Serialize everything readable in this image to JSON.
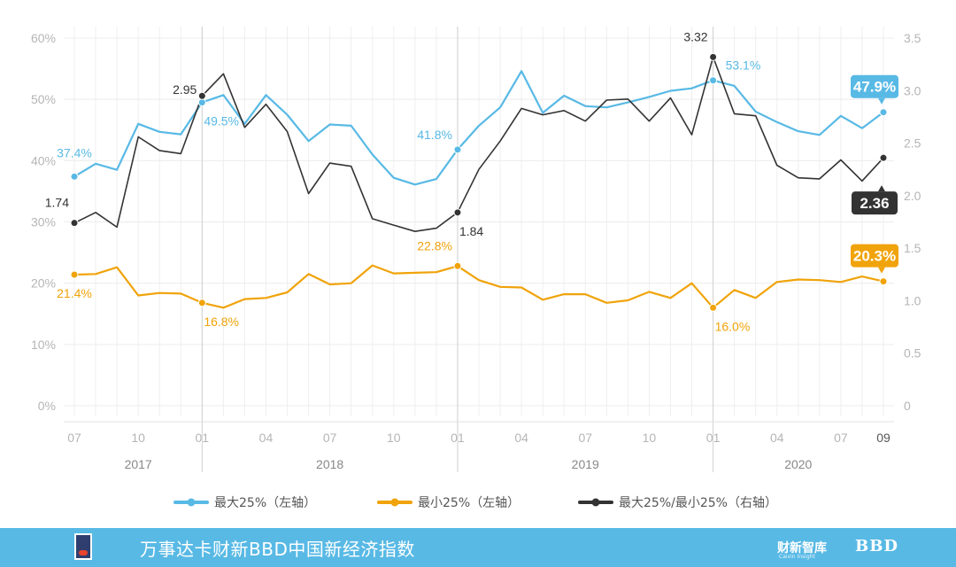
{
  "chart_data": {
    "type": "line",
    "x": [
      "2017-07",
      "2017-08",
      "2017-09",
      "2017-10",
      "2017-11",
      "2017-12",
      "2018-01",
      "2018-02",
      "2018-03",
      "2018-04",
      "2018-05",
      "2018-06",
      "2018-07",
      "2018-08",
      "2018-09",
      "2018-10",
      "2018-11",
      "2018-12",
      "2019-01",
      "2019-02",
      "2019-03",
      "2019-04",
      "2019-05",
      "2019-06",
      "2019-07",
      "2019-08",
      "2019-09",
      "2019-10",
      "2019-11",
      "2019-12",
      "2020-01",
      "2020-02",
      "2020-03",
      "2020-04",
      "2020-05",
      "2020-06",
      "2020-07",
      "2020-08",
      "2020-09"
    ],
    "x_tick_labels": [
      "07",
      "",
      "",
      "10",
      "",
      "",
      "01",
      "",
      "",
      "04",
      "",
      "",
      "07",
      "",
      "",
      "10",
      "",
      "",
      "01",
      "",
      "",
      "04",
      "",
      "",
      "07",
      "",
      "",
      "10",
      "",
      "",
      "01",
      "",
      "",
      "04",
      "",
      "",
      "07",
      "",
      "09"
    ],
    "year_labels": [
      "2017",
      "2018",
      "2019",
      "2020"
    ],
    "series": [
      {
        "name": "最大25%（左轴）",
        "axis": "left",
        "color": "#58b9e5",
        "values": [
          37.4,
          39.5,
          38.5,
          46.0,
          44.7,
          44.3,
          49.5,
          50.7,
          46.0,
          50.7,
          47.5,
          43.2,
          45.9,
          45.7,
          41.0,
          37.2,
          36.1,
          37.0,
          41.8,
          45.7,
          48.7,
          54.6,
          47.8,
          50.6,
          48.9,
          48.7,
          49.5,
          50.4,
          51.4,
          51.8,
          53.1,
          52.2,
          48.0,
          46.3,
          44.8,
          44.2,
          47.3,
          45.3,
          47.9
        ]
      },
      {
        "name": "最小25%（左轴）",
        "axis": "left",
        "color": "#f0a30a",
        "values": [
          21.4,
          21.5,
          22.6,
          18.0,
          18.4,
          18.3,
          16.8,
          16.0,
          17.4,
          17.6,
          18.5,
          21.5,
          19.8,
          20.0,
          22.9,
          21.6,
          21.7,
          21.8,
          22.8,
          20.5,
          19.4,
          19.3,
          17.3,
          18.2,
          18.2,
          16.8,
          17.2,
          18.6,
          17.6,
          20.0,
          16.0,
          18.9,
          17.6,
          20.2,
          20.6,
          20.5,
          20.2,
          21.1,
          20.3
        ]
      },
      {
        "name": "最大25%/最小25%（右轴）",
        "axis": "right",
        "color": "#333333",
        "values": [
          1.74,
          1.84,
          1.7,
          2.56,
          2.43,
          2.4,
          2.95,
          3.16,
          2.65,
          2.87,
          2.61,
          2.02,
          2.31,
          2.28,
          1.78,
          1.72,
          1.66,
          1.69,
          1.84,
          2.25,
          2.52,
          2.83,
          2.77,
          2.81,
          2.71,
          2.91,
          2.92,
          2.71,
          2.93,
          2.58,
          3.32,
          2.78,
          2.76,
          2.29,
          2.17,
          2.16,
          2.34,
          2.14,
          2.36
        ]
      }
    ],
    "annotations": [
      {
        "series": 0,
        "index": 0,
        "text": "37.4%",
        "pos": "above"
      },
      {
        "series": 0,
        "index": 6,
        "text": "49.5%",
        "pos": "below-right"
      },
      {
        "series": 0,
        "index": 18,
        "text": "41.8%",
        "pos": "left"
      },
      {
        "series": 0,
        "index": 30,
        "text": "53.1%",
        "pos": "right"
      },
      {
        "series": 0,
        "index": 38,
        "text": "47.9%",
        "pos": "badge"
      },
      {
        "series": 1,
        "index": 0,
        "text": "21.4%",
        "pos": "below"
      },
      {
        "series": 1,
        "index": 6,
        "text": "16.8%",
        "pos": "below-right"
      },
      {
        "series": 1,
        "index": 18,
        "text": "22.8%",
        "pos": "above-left"
      },
      {
        "series": 1,
        "index": 30,
        "text": "16.0%",
        "pos": "below-right"
      },
      {
        "series": 1,
        "index": 38,
        "text": "20.3%",
        "pos": "badge"
      },
      {
        "series": 2,
        "index": 0,
        "text": "1.74",
        "pos": "above-left"
      },
      {
        "series": 2,
        "index": 6,
        "text": "2.95",
        "pos": "left"
      },
      {
        "series": 2,
        "index": 18,
        "text": "1.84",
        "pos": "below-right"
      },
      {
        "series": 2,
        "index": 30,
        "text": "3.32",
        "pos": "above-left"
      },
      {
        "series": 2,
        "index": 38,
        "text": "2.36",
        "pos": "badge"
      }
    ],
    "y_left": {
      "min": 0,
      "max": 60,
      "ticks": [
        "0%",
        "10%",
        "20%",
        "30%",
        "40%",
        "50%",
        "60%"
      ]
    },
    "y_right": {
      "min": 0,
      "max": 3.5,
      "ticks": [
        "0",
        "0.5",
        "1.0",
        "1.5",
        "2.0",
        "2.5",
        "3.0",
        "3.5"
      ]
    },
    "legend": [
      "最大25%（左轴）",
      "最小25%（左轴）",
      "最大25%/最小25%（右轴）"
    ],
    "grid": true
  },
  "footer": {
    "title": "万事达卡财新BBD中国新经济指数",
    "brand_cn": "财新智库",
    "brand_sub": "Caixin Insight",
    "brand_bbd": "BBD",
    "logo_icon": "mastercard-caixin-logo-icon"
  }
}
